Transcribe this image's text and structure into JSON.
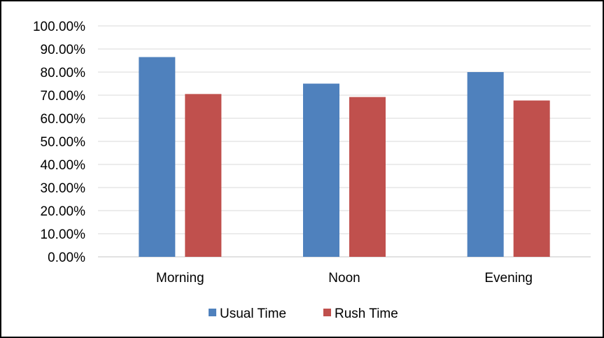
{
  "chart_data": {
    "type": "bar",
    "title": "",
    "xlabel": "",
    "ylabel": "",
    "categories": [
      "Morning",
      "Noon",
      "Evening"
    ],
    "series": [
      {
        "name": "Usual Time",
        "values": [
          0.865,
          0.75,
          0.8
        ],
        "color": "#4f81bd"
      },
      {
        "name": "Rush Time",
        "values": [
          0.705,
          0.692,
          0.677
        ],
        "color": "#c0504d"
      }
    ],
    "ylim": [
      0,
      1
    ],
    "y_ticks": [
      0,
      0.1,
      0.2,
      0.3,
      0.4,
      0.5,
      0.6,
      0.7,
      0.8,
      0.9,
      1.0
    ],
    "y_tick_labels": [
      "0.00%",
      "10.00%",
      "20.00%",
      "30.00%",
      "40.00%",
      "50.00%",
      "60.00%",
      "70.00%",
      "80.00%",
      "90.00%",
      "100.00%"
    ],
    "grid": true,
    "legend_position": "bottom-center",
    "colors": {
      "grid": "#d9d9d9",
      "border": "#000000",
      "axis": "#d9d9d9"
    }
  }
}
